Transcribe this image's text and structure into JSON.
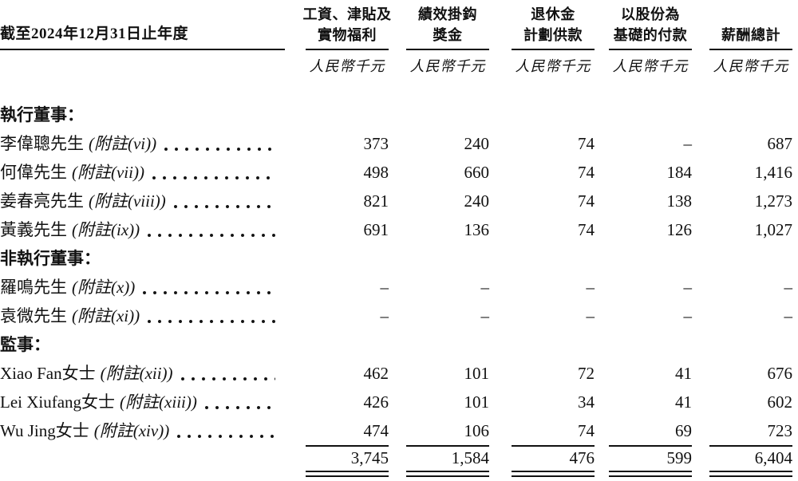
{
  "page": {
    "background": "#ffffff",
    "text_color": "#111111"
  },
  "table": {
    "period_label": "截至2024年12月31日止年度",
    "unit_label": "人民幣千元",
    "columns": [
      {
        "line1": "工資、津貼及",
        "line2": "實物福利"
      },
      {
        "line1": "績效掛鈎",
        "line2": "獎金"
      },
      {
        "line1": "退休金",
        "line2": "計劃供款"
      },
      {
        "line1": "以股份為",
        "line2": "基礎的付款"
      },
      {
        "line1": "",
        "line2": "薪酬總計"
      }
    ],
    "sections": [
      {
        "heading": "執行董事：",
        "rows": [
          {
            "name": "李偉聰先生",
            "note": "(附註(vi))",
            "values": [
              "373",
              "240",
              "74",
              "–",
              "687"
            ]
          },
          {
            "name": "何偉先生",
            "note": "(附註(vii))",
            "values": [
              "498",
              "660",
              "74",
              "184",
              "1,416"
            ]
          },
          {
            "name": "姜春亮先生",
            "note": "(附註(viii))",
            "values": [
              "821",
              "240",
              "74",
              "138",
              "1,273"
            ]
          },
          {
            "name": "黃義先生",
            "note": "(附註(ix))",
            "values": [
              "691",
              "136",
              "74",
              "126",
              "1,027"
            ]
          }
        ]
      },
      {
        "heading": "非執行董事：",
        "rows": [
          {
            "name": "羅鳴先生",
            "note": "(附註(x))",
            "values": [
              "–",
              "–",
              "–",
              "–",
              "–"
            ]
          },
          {
            "name": "袁微先生",
            "note": "(附註(xi))",
            "values": [
              "–",
              "–",
              "–",
              "–",
              "–"
            ]
          }
        ]
      },
      {
        "heading": "監事：",
        "rows": [
          {
            "name": "Xiao Fan女士",
            "note": "(附註(xii))",
            "values": [
              "462",
              "101",
              "72",
              "41",
              "676"
            ]
          },
          {
            "name": "Lei Xiufang女士",
            "note": "(附註(xiii))",
            "values": [
              "426",
              "101",
              "34",
              "41",
              "602"
            ]
          },
          {
            "name": "Wu Jing女士",
            "note": "(附註(xiv))",
            "values": [
              "474",
              "106",
              "74",
              "69",
              "723"
            ]
          }
        ]
      }
    ],
    "total": {
      "values": [
        "3,745",
        "1,584",
        "476",
        "599",
        "6,404"
      ]
    }
  }
}
